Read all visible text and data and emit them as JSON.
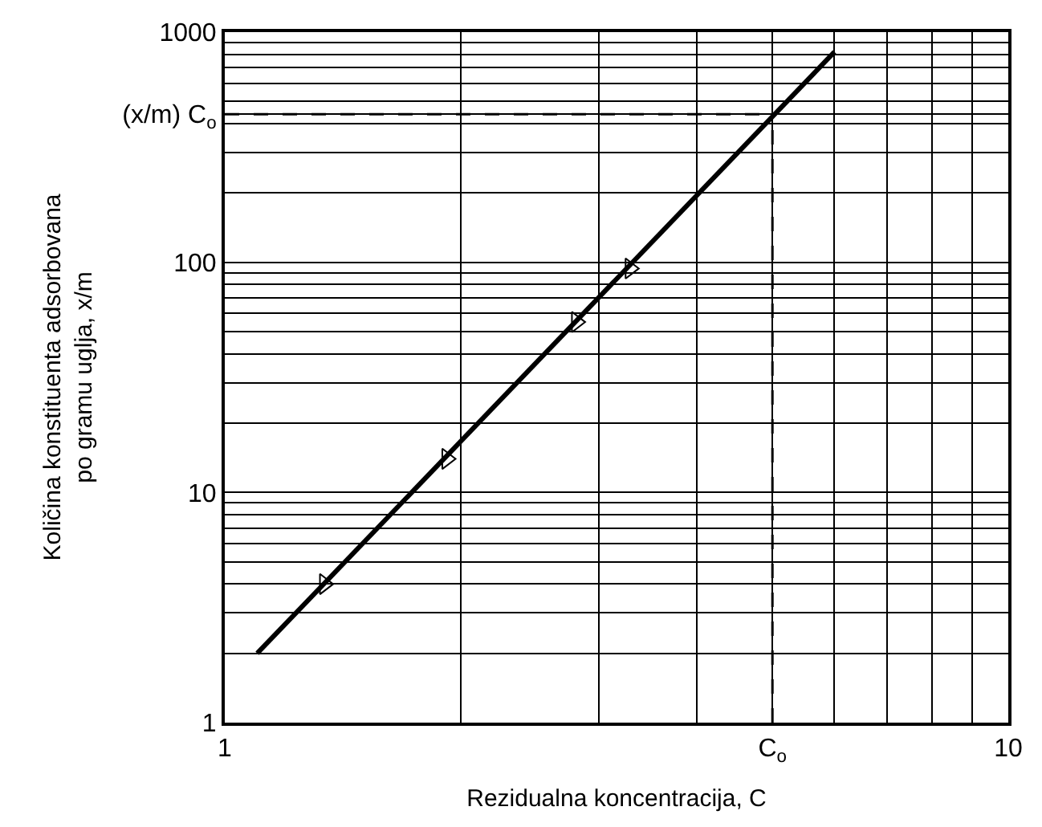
{
  "chart_data": {
    "type": "line",
    "xlabel": "Rezidualna koncentracija, C",
    "ylabel": "Količina konstituenta adsorbovana\npo gramu uglja, x/m",
    "log": "xy",
    "grid": true,
    "xlim": [
      1,
      10
    ],
    "ylim": [
      1,
      1000
    ],
    "xticks": [
      1,
      {
        "value": 5,
        "label": "C$_{o}$"
      },
      10
    ],
    "yticks": [
      1,
      10,
      100,
      {
        "value": 440,
        "label": "(x/m) C$_{o}$"
      },
      1000
    ],
    "ref_lines": [
      {
        "axis": "x",
        "value": 5,
        "line_style": "dashed",
        "color": "#000000"
      },
      {
        "axis": "y",
        "value": 440,
        "line_style": "dashed",
        "color": "#000000"
      }
    ],
    "series": [
      {
        "x": [
          1.1,
          6.0
        ],
        "values": [
          2,
          820
        ],
        "color": "#000000",
        "marker": "none",
        "line_style": "solid"
      },
      {
        "type": "scatter",
        "x": [
          1.34,
          1.92,
          2.81,
          3.29
        ],
        "values": [
          4,
          14,
          55,
          94
        ],
        "color": "#000000",
        "marker": "triangle"
      }
    ]
  }
}
